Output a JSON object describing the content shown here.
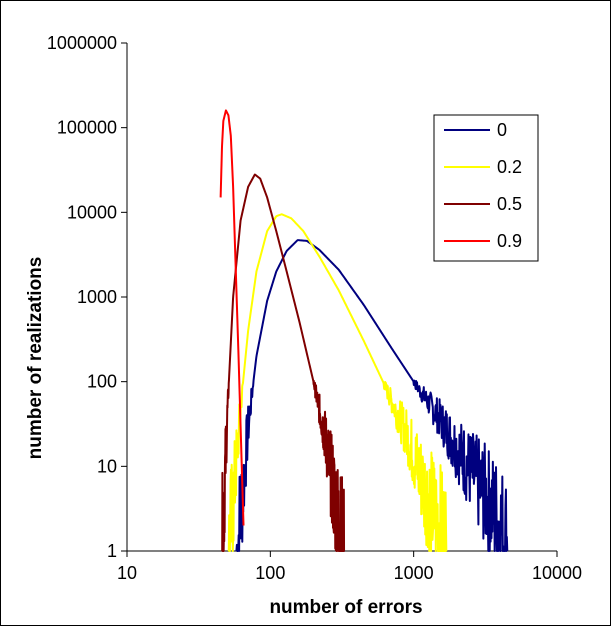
{
  "chart_data": {
    "type": "line",
    "xlabel": "number of errors",
    "ylabel": "number of realizations",
    "xscale": "log",
    "yscale": "log",
    "xlim": [
      10,
      10000
    ],
    "ylim": [
      1,
      1000000
    ],
    "x_ticks": [
      10,
      100,
      1000,
      10000
    ],
    "x_tick_labels": [
      "10",
      "100",
      "1000",
      "10000"
    ],
    "y_ticks": [
      1,
      10,
      100,
      1000,
      10000,
      100000,
      1000000
    ],
    "y_tick_labels": [
      "1",
      "10",
      "100",
      "1000",
      "10000",
      "100000",
      "1000000"
    ],
    "grid": false,
    "legend_position": "top-right",
    "series": [
      {
        "name": "0",
        "color": "#00007f",
        "noisy_tail": true,
        "points": [
          [
            58,
            1
          ],
          [
            62,
            3
          ],
          [
            70,
            30
          ],
          [
            80,
            200
          ],
          [
            95,
            900
          ],
          [
            110,
            2000
          ],
          [
            130,
            3500
          ],
          [
            155,
            4700
          ],
          [
            180,
            4600
          ],
          [
            220,
            3600
          ],
          [
            300,
            2100
          ],
          [
            450,
            800
          ],
          [
            700,
            250
          ],
          [
            1000,
            100
          ],
          [
            1500,
            40
          ],
          [
            2200,
            14
          ],
          [
            3000,
            6
          ],
          [
            3800,
            3
          ],
          [
            4500,
            1.5
          ]
        ]
      },
      {
        "name": "0.2",
        "color": "#ffff00",
        "noisy_tail": true,
        "points": [
          [
            51,
            1
          ],
          [
            55,
            4
          ],
          [
            62,
            50
          ],
          [
            70,
            400
          ],
          [
            80,
            2000
          ],
          [
            95,
            6000
          ],
          [
            110,
            9000
          ],
          [
            120,
            9500
          ],
          [
            140,
            8500
          ],
          [
            170,
            6000
          ],
          [
            220,
            3000
          ],
          [
            300,
            1200
          ],
          [
            450,
            300
          ],
          [
            650,
            80
          ],
          [
            900,
            25
          ],
          [
            1200,
            6
          ],
          [
            1500,
            2.5
          ],
          [
            1700,
            1.2
          ]
        ]
      },
      {
        "name": "0.5",
        "color": "#7f0000",
        "noisy_tail": true,
        "points": [
          [
            46,
            1
          ],
          [
            50,
            40
          ],
          [
            55,
            1000
          ],
          [
            62,
            8000
          ],
          [
            70,
            20000
          ],
          [
            78,
            28000
          ],
          [
            85,
            25000
          ],
          [
            95,
            15000
          ],
          [
            110,
            6000
          ],
          [
            130,
            2000
          ],
          [
            160,
            500
          ],
          [
            200,
            100
          ],
          [
            240,
            25
          ],
          [
            280,
            5
          ],
          [
            310,
            1.5
          ],
          [
            330,
            1
          ]
        ]
      },
      {
        "name": "0.9",
        "color": "#ff0000",
        "noisy_tail": false,
        "points": [
          [
            45,
            15000
          ],
          [
            46,
            60000
          ],
          [
            47,
            120000
          ],
          [
            49,
            160000
          ],
          [
            51,
            140000
          ],
          [
            53,
            80000
          ],
          [
            55,
            20000
          ],
          [
            57,
            3000
          ],
          [
            60,
            200
          ],
          [
            62,
            30
          ],
          [
            65,
            2
          ]
        ]
      }
    ]
  }
}
